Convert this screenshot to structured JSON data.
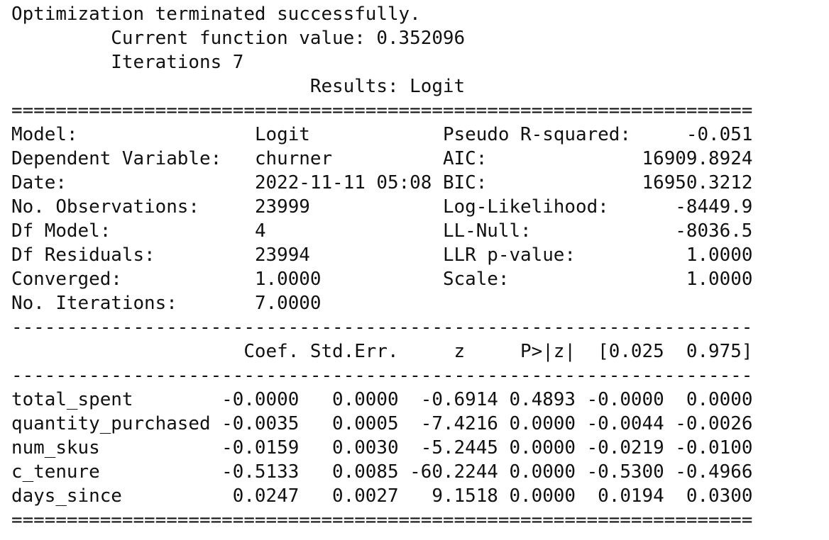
{
  "output": {
    "status_line": "Optimization terminated successfully.",
    "function_value_line": "         Current function value: 0.352096",
    "iterations_line": "         Iterations 7",
    "results_title": "                           Results: Logit",
    "rule_double": "===================================================================",
    "rule_single": "-------------------------------------------------------------------",
    "summary_rows": [
      {
        "left_label": "Model:",
        "left_value": "Logit",
        "right_label": "Pseudo R-squared:",
        "right_value": "-0.051"
      },
      {
        "left_label": "Dependent Variable:",
        "left_value": "churner",
        "right_label": "AIC:",
        "right_value": "16909.8924"
      },
      {
        "left_label": "Date:",
        "left_value": "2022-11-11 05:08",
        "right_label": "BIC:",
        "right_value": "16950.3212"
      },
      {
        "left_label": "No. Observations:",
        "left_value": "23999",
        "right_label": "Log-Likelihood:",
        "right_value": "-8449.9"
      },
      {
        "left_label": "Df Model:",
        "left_value": "4",
        "right_label": "LL-Null:",
        "right_value": "-8036.5"
      },
      {
        "left_label": "Df Residuals:",
        "left_value": "23994",
        "right_label": "LLR p-value:",
        "right_value": "1.0000"
      },
      {
        "left_label": "Converged:",
        "left_value": "1.0000",
        "right_label": "Scale:",
        "right_value": "1.0000"
      },
      {
        "left_label": "No. Iterations:",
        "left_value": "7.0000",
        "right_label": "",
        "right_value": ""
      }
    ],
    "coef_headers": [
      "Coef.",
      "Std.Err.",
      "z",
      "P>|z|",
      "[0.025",
      "0.975]"
    ],
    "coef_rows": [
      {
        "variable": "total_spent",
        "coef": "-0.0000",
        "std_err": "0.0000",
        "z": "-0.6914",
        "p": "0.4893",
        "ci_low": "-0.0000",
        "ci_high": "0.0000"
      },
      {
        "variable": "quantity_purchased",
        "coef": "-0.0035",
        "std_err": "0.0005",
        "z": "-7.4216",
        "p": "0.0000",
        "ci_low": "-0.0044",
        "ci_high": "-0.0026"
      },
      {
        "variable": "num_skus",
        "coef": "-0.0159",
        "std_err": "0.0030",
        "z": "-5.2445",
        "p": "0.0000",
        "ci_low": "-0.0219",
        "ci_high": "-0.0100"
      },
      {
        "variable": "c_tenure",
        "coef": "-0.5133",
        "std_err": "0.0085",
        "z": "-60.2244",
        "p": "0.0000",
        "ci_low": "-0.5300",
        "ci_high": "-0.4966"
      },
      {
        "variable": "days_since",
        "coef": "0.0247",
        "std_err": "0.0027",
        "z": "9.1518",
        "p": "0.0000",
        "ci_low": "0.0194",
        "ci_high": "0.0300"
      }
    ]
  }
}
